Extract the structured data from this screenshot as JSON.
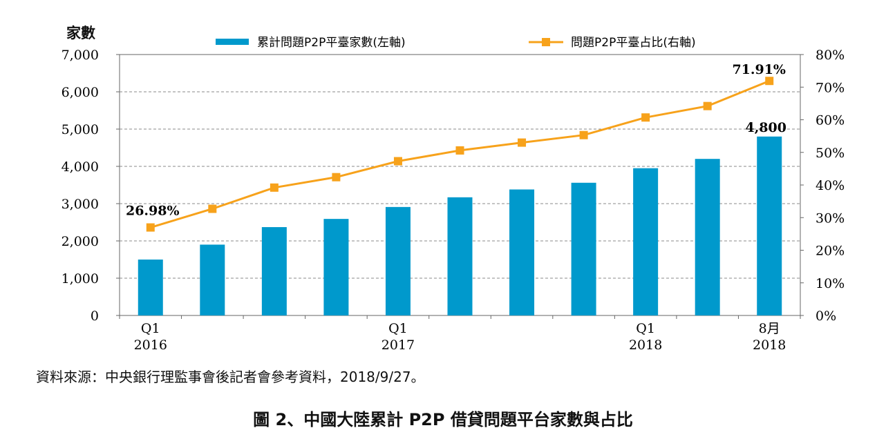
{
  "chart_data": {
    "type": "bar+line",
    "y_left_label": "家數",
    "x_ticks": [
      {
        "index": 0,
        "line1": "Q1",
        "line2": "2016"
      },
      {
        "index": 4,
        "line1": "Q1",
        "line2": "2017"
      },
      {
        "index": 8,
        "line1": "Q1",
        "line2": "2018"
      },
      {
        "index": 10,
        "line1": "8月",
        "line2": "2018"
      }
    ],
    "left_axis": {
      "min": 0,
      "max": 7000,
      "ticks": [
        "0",
        "1,000",
        "2,000",
        "3,000",
        "4,000",
        "5,000",
        "6,000",
        "7,000"
      ]
    },
    "right_axis": {
      "min": 0,
      "max": 80,
      "ticks": [
        "0%",
        "10%",
        "20%",
        "30%",
        "40%",
        "50%",
        "60%",
        "70%",
        "80%"
      ]
    },
    "grid": "horizontal dashed",
    "legend_position": "top",
    "series": [
      {
        "name": "累計問題P2P平臺家數(左軸)",
        "kind": "bar",
        "axis": "left",
        "color": "#0099cc",
        "values": [
          1500,
          1900,
          2370,
          2590,
          2910,
          3170,
          3380,
          3560,
          3950,
          4200,
          4800
        ]
      },
      {
        "name": "問題P2P平臺占比(右軸)",
        "kind": "line",
        "axis": "right",
        "color": "#f7a21b",
        "values": [
          26.98,
          32.7,
          39.2,
          42.4,
          47.3,
          50.6,
          53.0,
          55.3,
          60.7,
          64.2,
          71.91
        ]
      }
    ],
    "annotations": [
      "26.98%",
      "71.91%",
      "4,800"
    ]
  },
  "source_text": "資料來源：中央銀行理監事會後記者會參考資料，2018/9/27。",
  "caption": "圖 2、中國大陸累計 P2P 借貸問題平台家數與占比"
}
